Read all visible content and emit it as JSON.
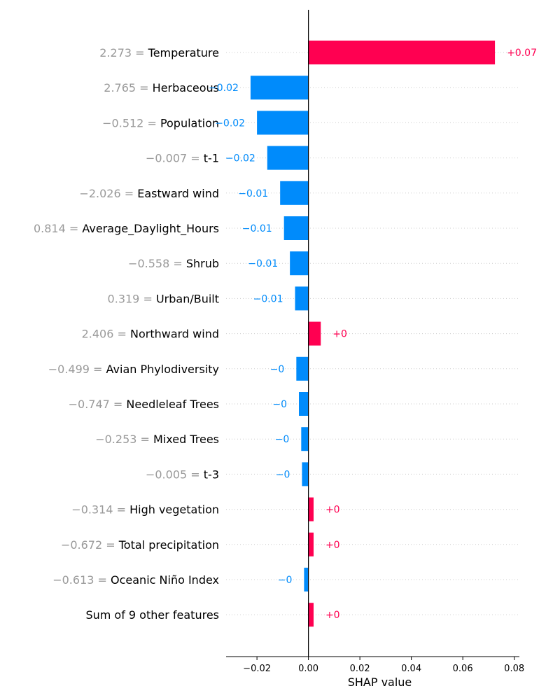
{
  "chart_data": {
    "type": "bar",
    "orientation": "horizontal",
    "xlabel": "SHAP value",
    "xlim": [
      -0.032,
      0.082
    ],
    "xticks": [
      -0.02,
      0.0,
      0.02,
      0.04,
      0.06,
      0.08
    ],
    "xtick_labels": [
      "−0.02",
      "0.00",
      "0.02",
      "0.04",
      "0.06",
      "0.08"
    ],
    "grid": "dotted horizontal row guides",
    "colors": {
      "positive": "#ff0051",
      "negative": "#008bfb",
      "feature_value": "#999999"
    },
    "features": [
      {
        "value_text": "2.273 = ",
        "name": "Temperature",
        "shap": 0.0725,
        "label": "+0.07"
      },
      {
        "value_text": "2.765 = ",
        "name": "Herbaceous",
        "shap": -0.0225,
        "label": "−0.02"
      },
      {
        "value_text": "−0.512 = ",
        "name": "Population",
        "shap": -0.02,
        "label": "−0.02"
      },
      {
        "value_text": "−0.007 = ",
        "name": "t-1",
        "shap": -0.016,
        "label": "−0.02"
      },
      {
        "value_text": "−2.026 = ",
        "name": "Eastward wind",
        "shap": -0.011,
        "label": "−0.01"
      },
      {
        "value_text": "0.814 = ",
        "name": "Average_Daylight_Hours",
        "shap": -0.0095,
        "label": "−0.01"
      },
      {
        "value_text": "−0.558 = ",
        "name": "Shrub",
        "shap": -0.0072,
        "label": "−0.01"
      },
      {
        "value_text": "0.319 = ",
        "name": "Urban/Built",
        "shap": -0.0052,
        "label": "−0.01"
      },
      {
        "value_text": "2.406 = ",
        "name": "Northward wind",
        "shap": 0.0048,
        "label": "+0"
      },
      {
        "value_text": "−0.499 = ",
        "name": "Avian Phylodiversity",
        "shap": -0.0047,
        "label": "−0"
      },
      {
        "value_text": "−0.747 = ",
        "name": "Needleleaf Trees",
        "shap": -0.0037,
        "label": "−0"
      },
      {
        "value_text": "−0.253 = ",
        "name": "Mixed Trees",
        "shap": -0.0028,
        "label": "−0"
      },
      {
        "value_text": "−0.005 = ",
        "name": "t-3",
        "shap": -0.0025,
        "label": "−0"
      },
      {
        "value_text": "−0.314 = ",
        "name": "High vegetation",
        "shap": 0.002,
        "label": "+0"
      },
      {
        "value_text": "−0.672 = ",
        "name": "Total precipitation",
        "shap": 0.002,
        "label": "+0"
      },
      {
        "value_text": "−0.613 = ",
        "name": "Oceanic Niño Index",
        "shap": -0.0017,
        "label": "−0"
      },
      {
        "value_text": "",
        "name": "Sum of 9 other features",
        "shap": 0.002,
        "label": "+0"
      }
    ]
  }
}
